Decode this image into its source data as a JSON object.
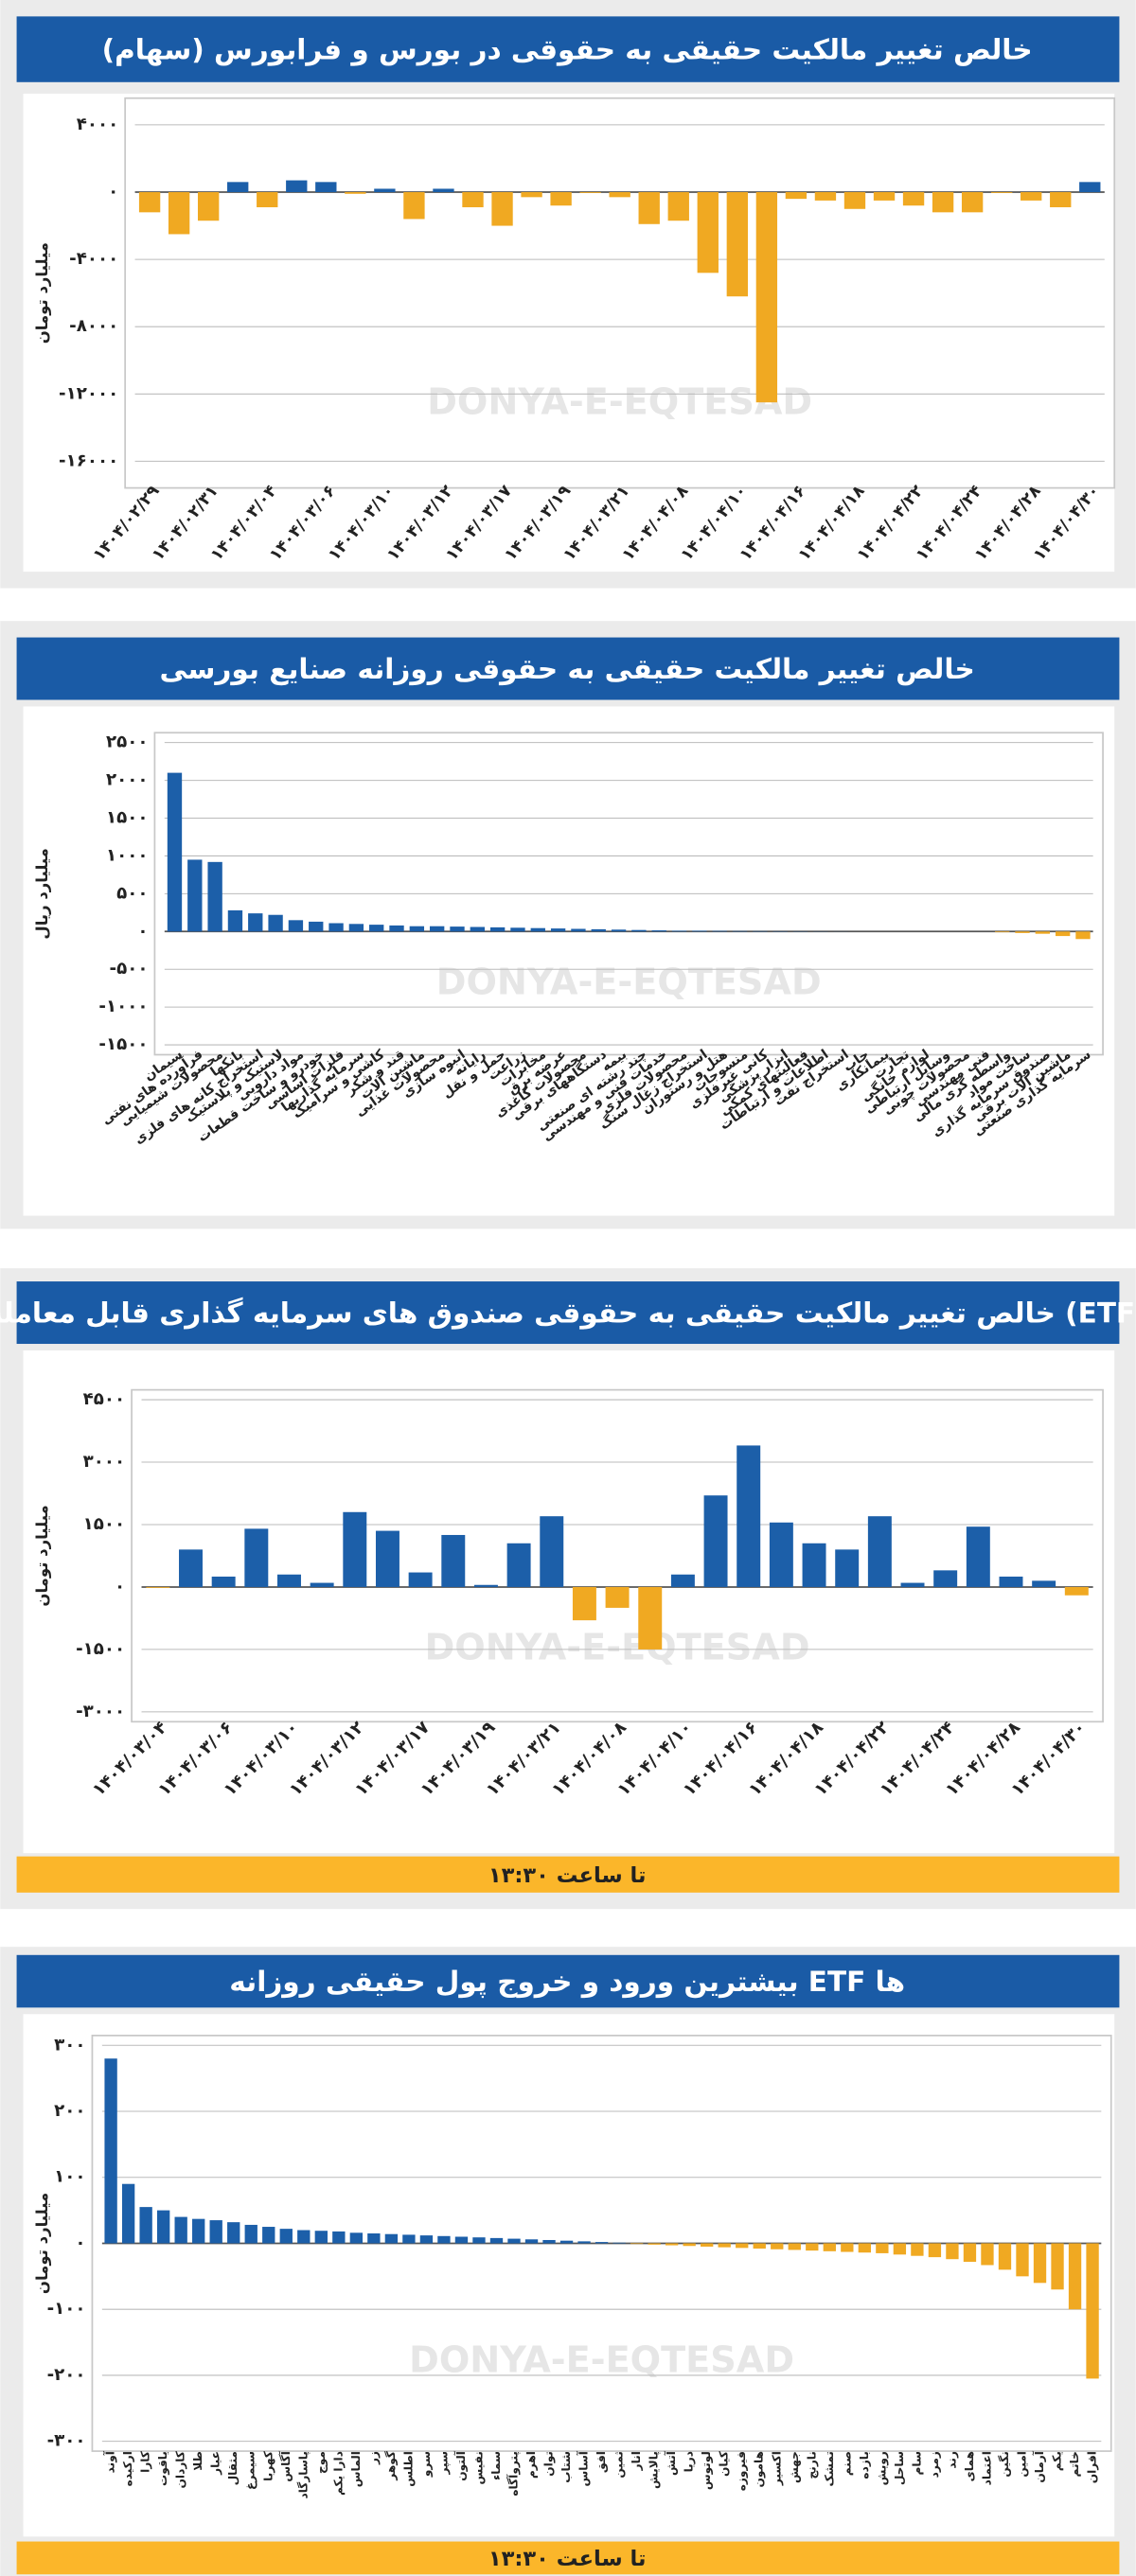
{
  "watermark": "DONYA-E-EQTESAD",
  "chart_data": [
    {
      "type": "bar",
      "title": "خالص تغییر مالکیت حقیقی به حقوقی در بورس و فرابورس (سهام)",
      "y_label": "میلیارد تومان",
      "categories": [
        "۱۴۰۴/۰۲/۲۹",
        null,
        "۱۴۰۴/۰۲/۳۱",
        null,
        "۱۴۰۴/۰۳/۰۴",
        null,
        "۱۴۰۴/۰۳/۰۶",
        null,
        "۱۴۰۴/۰۳/۱۰",
        null,
        "۱۴۰۴/۰۳/۱۲",
        null,
        "۱۴۰۴/۰۳/۱۷",
        null,
        "۱۴۰۴/۰۳/۱۹",
        null,
        "۱۴۰۴/۰۳/۲۱",
        null,
        "۱۴۰۴/۰۴/۰۸",
        null,
        "۱۴۰۴/۰۴/۱۰",
        null,
        "۱۴۰۴/۰۴/۱۶",
        null,
        "۱۴۰۴/۰۴/۱۸",
        null,
        "۱۴۰۴/۰۴/۲۲",
        null,
        "۱۴۰۴/۰۴/۲۴",
        null,
        "۱۴۰۴/۰۴/۲۸",
        null,
        "۱۴۰۴/۰۴/۳۰"
      ],
      "values": [
        -1200,
        -2500,
        -1700,
        600,
        -900,
        700,
        600,
        -100,
        200,
        -1600,
        200,
        -900,
        -2000,
        -300,
        -800,
        -50,
        -300,
        -1900,
        -1700,
        -4800,
        -6200,
        -12500,
        -400,
        -500,
        -1000,
        -500,
        -800,
        -1200,
        -1200,
        -50,
        -500,
        -900,
        600
      ],
      "ylim": [
        -17000,
        5000
      ],
      "yticks": [
        {
          "value": -16000,
          "label": "-۱۶۰۰۰"
        },
        {
          "value": -12000,
          "label": "-۱۲۰۰۰"
        },
        {
          "value": -8000,
          "label": "-۸۰۰۰"
        },
        {
          "value": -4000,
          "label": "-۴۰۰۰"
        },
        {
          "value": 0,
          "label": "۰"
        },
        {
          "value": 4000,
          "label": "۴۰۰۰"
        }
      ],
      "positive_color": "#1c5fa9",
      "negative_color": "#f0a922",
      "grid": true
    },
    {
      "type": "bar",
      "title": "خالص تغییر مالکیت حقیقی به حقوقی روزانه صنایع بورسی",
      "y_label": "میلیارد ریال",
      "categories": [
        "سیمان",
        "فرآورده های نفتی",
        "محصولات شیمیایی",
        "بانکها",
        "استخراج کانه های فلزی",
        "لاستیک و پلاستیک",
        "مواد دارویی",
        "خودرو و ساخت قطعات",
        "فلزات اساسی",
        "سرمایه گذاریها",
        "کاشی و سرامیک",
        "قند و شکر",
        "ماشین آلات",
        "محصولات غذایی",
        "انبوه سازی",
        "رایانه",
        "حمل و نقل",
        "زراعت",
        "مخابرات",
        "عرضه برق",
        "محصولات کاغذی",
        "دستگاههای برقی",
        "بیمه",
        "چند رشته ای صنعتی",
        "خدمات فنی و مهندسی",
        "محصولات فلزی",
        "استخراج زغال سنگ",
        "هتل و رستوران",
        "منسوجات",
        "کانی غیرفلزی",
        "ابزار پزشکی",
        "فعالیتهای کمکی",
        "اطلاعات و ارتباطات",
        "استخراج نفت",
        "چاپ",
        "پیمانکاری",
        "تجارت",
        "لوازم خانگی",
        "وسایل ارتباطی",
        "محصولات چوبی",
        "فنی مهندسی",
        "واسطه گری مالی",
        "ساخت مواد",
        "صندوق سرمایه گذاری",
        "ماشین آلات برقی",
        "سرمایه گذاری صنعتی"
      ],
      "values": [
        2100,
        950,
        920,
        280,
        240,
        220,
        150,
        130,
        110,
        100,
        90,
        80,
        70,
        70,
        65,
        60,
        55,
        50,
        45,
        40,
        35,
        30,
        25,
        20,
        15,
        10,
        10,
        8,
        6,
        5,
        4,
        3,
        2,
        1,
        0,
        0,
        0,
        0,
        0,
        0,
        0,
        -10,
        -20,
        -30,
        -60,
        -100
      ],
      "ylim": [
        -1500,
        2500
      ],
      "yticks": [
        {
          "value": -1500,
          "label": "-۱۵۰۰"
        },
        {
          "value": -1000,
          "label": "-۱۰۰۰"
        },
        {
          "value": -500,
          "label": "-۵۰۰"
        },
        {
          "value": 0,
          "label": "۰"
        },
        {
          "value": 500,
          "label": "۵۰۰"
        },
        {
          "value": 1000,
          "label": "۱۰۰۰"
        },
        {
          "value": 1500,
          "label": "۱۵۰۰"
        },
        {
          "value": 2000,
          "label": "۲۰۰۰"
        },
        {
          "value": 2500,
          "label": "۲۵۰۰"
        }
      ],
      "positive_color": "#1c5fa9",
      "negative_color": "#f0a922",
      "grid": true
    },
    {
      "type": "bar",
      "title": "خالص تغییر مالکیت حقیقی به حقوقی صندوق های سرمایه گذاری قابل معامله (ETF)",
      "y_label": "میلیارد تومان",
      "note": "تا ساعت ۱۳:۳۰",
      "categories": [
        "۱۴۰۴/۰۳/۰۴",
        null,
        "۱۴۰۴/۰۳/۰۶",
        null,
        "۱۴۰۴/۰۳/۱۰",
        null,
        "۱۴۰۴/۰۳/۱۲",
        null,
        "۱۴۰۴/۰۳/۱۷",
        null,
        "۱۴۰۴/۰۳/۱۹",
        null,
        "۱۴۰۴/۰۳/۲۱",
        null,
        "۱۴۰۴/۰۴/۰۸",
        null,
        "۱۴۰۴/۰۴/۱۰",
        null,
        "۱۴۰۴/۰۴/۱۶",
        null,
        "۱۴۰۴/۰۴/۱۸",
        null,
        "۱۴۰۴/۰۴/۲۲",
        null,
        "۱۴۰۴/۰۴/۲۴",
        null,
        "۱۴۰۴/۰۴/۲۸",
        null,
        "۱۴۰۴/۰۴/۳۰"
      ],
      "values": [
        -20,
        900,
        250,
        1400,
        300,
        100,
        1800,
        1350,
        350,
        1250,
        50,
        1050,
        1700,
        -800,
        -500,
        -1500,
        300,
        2200,
        3400,
        1550,
        1050,
        900,
        1700,
        100,
        400,
        1450,
        250,
        150,
        -200
      ],
      "ylim": [
        -3000,
        4500
      ],
      "yticks": [
        {
          "value": -3000,
          "label": "-۳۰۰۰"
        },
        {
          "value": -1500,
          "label": "-۱۵۰۰"
        },
        {
          "value": 0,
          "label": "۰"
        },
        {
          "value": 1500,
          "label": "۱۵۰۰"
        },
        {
          "value": 3000,
          "label": "۳۰۰۰"
        },
        {
          "value": 4500,
          "label": "۴۵۰۰"
        }
      ],
      "positive_color": "#1c5fa9",
      "negative_color": "#f0a922",
      "grid": true
    },
    {
      "type": "bar",
      "title": "بیشترین ورود و خروج پول حقیقی روزانه ETF ها",
      "y_label": "میلیارد تومان",
      "note": "تا ساعت ۱۳:۳۰",
      "categories": [
        "آوند",
        "ارکیده",
        "کارا",
        "یاقوت",
        "کاردان",
        "طلا",
        "عیار",
        "مثقال",
        "سیمرغ",
        "کهربا",
        "آگاس",
        "پاسارگاد",
        "موج",
        "دارا یکم",
        "الماس",
        "زر",
        "گوهر",
        "اطلس",
        "سرو",
        "سپر",
        "آلتون",
        "نفیس",
        "سماء",
        "پتروآگاه",
        "اهرم",
        "توان",
        "شتاب",
        "آساس",
        "افق",
        "ثمین",
        "انار",
        "پالایش",
        "آتش",
        "دریا",
        "لوتوس",
        "کیان",
        "فیروزه",
        "هامون",
        "اکسیر",
        "جهش",
        "نارنج",
        "تمشک",
        "صنم",
        "بازده",
        "رویش",
        "ساحل",
        "سام",
        "زمرد",
        "رند",
        "همای",
        "اعتماد",
        "نگین",
        "امین",
        "آرمان",
        "یکم",
        "خاتم",
        "افران"
      ],
      "values": [
        280,
        90,
        55,
        50,
        40,
        37,
        35,
        32,
        28,
        25,
        22,
        20,
        19,
        18,
        16,
        15,
        14,
        13,
        12,
        11,
        10,
        9,
        8,
        7,
        6,
        5,
        4,
        3,
        2,
        1,
        -1,
        -2,
        -3,
        -4,
        -5,
        -6,
        -7,
        -8,
        -9,
        -10,
        -11,
        -12,
        -13,
        -14,
        -15,
        -17,
        -19,
        -21,
        -24,
        -28,
        -33,
        -40,
        -50,
        -60,
        -70,
        -100,
        -205
      ],
      "ylim": [
        -300,
        300
      ],
      "yticks": [
        {
          "value": -300,
          "label": "-۳۰۰"
        },
        {
          "value": -200,
          "label": "-۲۰۰"
        },
        {
          "value": -100,
          "label": "-۱۰۰"
        },
        {
          "value": 0,
          "label": "۰"
        },
        {
          "value": 100,
          "label": "۱۰۰"
        },
        {
          "value": 200,
          "label": "۲۰۰"
        },
        {
          "value": 300,
          "label": "۳۰۰"
        }
      ],
      "positive_color": "#1c5fa9",
      "negative_color": "#f0a922",
      "grid": true
    }
  ]
}
